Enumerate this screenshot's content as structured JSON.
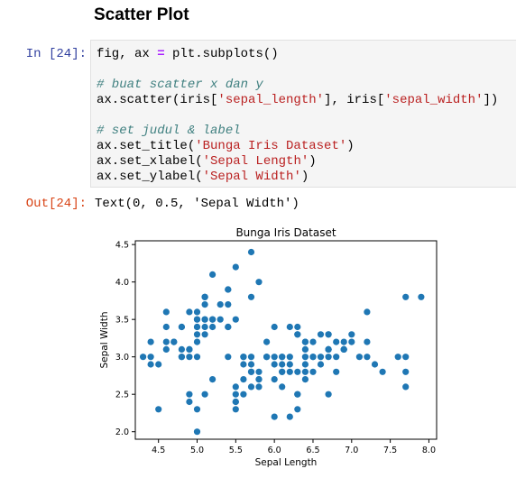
{
  "heading": "Scatter Plot",
  "cell": {
    "in_prompt": "In [24]:",
    "out_prompt": "Out[24]:",
    "output": "Text(0, 0.5, 'Sepal Width')"
  },
  "code": {
    "l1_a": "fig, ax ",
    "l1_op": "=",
    "l1_b": " plt.subplots()",
    "l2_comment": "# buat scatter x dan y",
    "l3_a": "ax.scatter(iris[",
    "l3_s1": "'sepal_length'",
    "l3_b": "], iris[",
    "l3_s2": "'sepal_width'",
    "l3_c": "])",
    "l4_comment": "# set judul & label",
    "l5_a": "ax.set_title(",
    "l5_s": "'Bunga Iris Dataset'",
    "l5_b": ")",
    "l6_a": "ax.set_xlabel(",
    "l6_s": "'Sepal Length'",
    "l6_b": ")",
    "l7_a": "ax.set_ylabel(",
    "l7_s": "'Sepal Width'",
    "l7_b": ")"
  },
  "chart_data": {
    "type": "scatter",
    "title": "Bunga Iris Dataset",
    "xlabel": "Sepal Length",
    "ylabel": "Sepal Width",
    "xlim": [
      4.2,
      8.1
    ],
    "ylim": [
      1.9,
      4.55
    ],
    "xticks": [
      "4.5",
      "5.0",
      "5.5",
      "6.0",
      "6.5",
      "7.0",
      "7.5",
      "8.0"
    ],
    "yticks": [
      "2.0",
      "2.5",
      "3.0",
      "3.5",
      "4.0",
      "4.5"
    ],
    "grid": false,
    "marker_color": "#1f77b4",
    "points": [
      [
        5.1,
        3.5
      ],
      [
        4.9,
        3.0
      ],
      [
        4.7,
        3.2
      ],
      [
        4.6,
        3.1
      ],
      [
        5.0,
        3.6
      ],
      [
        5.4,
        3.9
      ],
      [
        4.6,
        3.4
      ],
      [
        5.0,
        3.4
      ],
      [
        4.4,
        2.9
      ],
      [
        4.9,
        3.1
      ],
      [
        5.4,
        3.7
      ],
      [
        4.8,
        3.4
      ],
      [
        4.8,
        3.0
      ],
      [
        4.3,
        3.0
      ],
      [
        5.8,
        4.0
      ],
      [
        5.7,
        4.4
      ],
      [
        5.4,
        3.9
      ],
      [
        5.1,
        3.5
      ],
      [
        5.7,
        3.8
      ],
      [
        5.1,
        3.8
      ],
      [
        5.4,
        3.4
      ],
      [
        5.1,
        3.7
      ],
      [
        4.6,
        3.6
      ],
      [
        5.1,
        3.3
      ],
      [
        4.8,
        3.4
      ],
      [
        5.0,
        3.0
      ],
      [
        5.0,
        3.4
      ],
      [
        5.2,
        3.5
      ],
      [
        5.2,
        3.4
      ],
      [
        4.7,
        3.2
      ],
      [
        4.8,
        3.1
      ],
      [
        5.4,
        3.4
      ],
      [
        5.2,
        4.1
      ],
      [
        5.5,
        4.2
      ],
      [
        4.9,
        3.1
      ],
      [
        5.0,
        3.2
      ],
      [
        5.5,
        3.5
      ],
      [
        4.9,
        3.6
      ],
      [
        4.4,
        3.0
      ],
      [
        5.1,
        3.4
      ],
      [
        5.0,
        3.5
      ],
      [
        4.5,
        2.3
      ],
      [
        4.4,
        3.2
      ],
      [
        5.0,
        3.5
      ],
      [
        5.1,
        3.8
      ],
      [
        4.8,
        3.0
      ],
      [
        5.1,
        3.8
      ],
      [
        4.6,
        3.2
      ],
      [
        5.3,
        3.7
      ],
      [
        5.0,
        3.3
      ],
      [
        7.0,
        3.2
      ],
      [
        6.4,
        3.2
      ],
      [
        6.9,
        3.1
      ],
      [
        5.5,
        2.3
      ],
      [
        6.5,
        2.8
      ],
      [
        5.7,
        2.8
      ],
      [
        6.3,
        3.3
      ],
      [
        4.9,
        2.4
      ],
      [
        6.6,
        2.9
      ],
      [
        5.2,
        2.7
      ],
      [
        5.0,
        2.0
      ],
      [
        5.9,
        3.0
      ],
      [
        6.0,
        2.2
      ],
      [
        6.1,
        2.9
      ],
      [
        5.6,
        2.9
      ],
      [
        6.7,
        3.1
      ],
      [
        5.6,
        3.0
      ],
      [
        5.8,
        2.7
      ],
      [
        6.2,
        2.2
      ],
      [
        5.6,
        2.5
      ],
      [
        5.9,
        3.2
      ],
      [
        6.1,
        2.8
      ],
      [
        6.3,
        2.5
      ],
      [
        6.4,
        2.9
      ],
      [
        6.6,
        3.0
      ],
      [
        6.8,
        2.8
      ],
      [
        6.7,
        3.0
      ],
      [
        6.0,
        2.9
      ],
      [
        5.7,
        2.6
      ],
      [
        5.5,
        2.4
      ],
      [
        5.5,
        2.4
      ],
      [
        5.8,
        2.7
      ],
      [
        6.0,
        2.7
      ],
      [
        5.4,
        3.0
      ],
      [
        6.0,
        3.4
      ],
      [
        6.7,
        3.1
      ],
      [
        6.3,
        2.3
      ],
      [
        5.6,
        3.0
      ],
      [
        5.5,
        2.5
      ],
      [
        5.5,
        2.6
      ],
      [
        6.1,
        3.0
      ],
      [
        5.8,
        2.6
      ],
      [
        5.0,
        2.3
      ],
      [
        5.6,
        2.7
      ],
      [
        5.7,
        3.0
      ],
      [
        5.7,
        2.9
      ],
      [
        6.2,
        2.9
      ],
      [
        5.1,
        2.5
      ],
      [
        5.7,
        2.8
      ],
      [
        6.3,
        3.3
      ],
      [
        7.1,
        3.0
      ],
      [
        6.5,
        3.0
      ],
      [
        7.6,
        3.0
      ],
      [
        4.9,
        2.5
      ],
      [
        7.3,
        2.9
      ],
      [
        6.7,
        2.5
      ],
      [
        7.2,
        3.6
      ],
      [
        6.5,
        3.2
      ],
      [
        6.4,
        2.7
      ],
      [
        6.8,
        3.0
      ],
      [
        5.8,
        2.8
      ],
      [
        6.4,
        3.2
      ],
      [
        7.7,
        3.8
      ],
      [
        7.7,
        2.6
      ],
      [
        6.9,
        3.2
      ],
      [
        7.7,
        2.8
      ],
      [
        6.7,
        3.3
      ],
      [
        7.2,
        3.2
      ],
      [
        6.2,
        2.8
      ],
      [
        6.1,
        3.0
      ],
      [
        6.4,
        2.8
      ],
      [
        7.2,
        3.0
      ],
      [
        7.4,
        2.8
      ],
      [
        7.9,
        3.8
      ],
      [
        6.3,
        2.8
      ],
      [
        6.1,
        2.6
      ],
      [
        7.7,
        3.0
      ],
      [
        6.3,
        3.4
      ],
      [
        6.4,
        3.1
      ],
      [
        6.0,
        3.0
      ],
      [
        6.9,
        3.1
      ],
      [
        6.7,
        3.1
      ],
      [
        6.9,
        3.1
      ],
      [
        6.8,
        3.2
      ],
      [
        6.7,
        3.3
      ],
      [
        6.3,
        2.5
      ],
      [
        6.5,
        3.0
      ],
      [
        6.2,
        3.4
      ],
      [
        5.9,
        3.0
      ],
      [
        6.6,
        3.3
      ],
      [
        6.1,
        2.8
      ],
      [
        6.2,
        3.0
      ],
      [
        7.0,
        3.3
      ],
      [
        5.2,
        3.5
      ],
      [
        4.5,
        2.9
      ],
      [
        6.4,
        3.0
      ],
      [
        5.3,
        3.5
      ]
    ]
  }
}
